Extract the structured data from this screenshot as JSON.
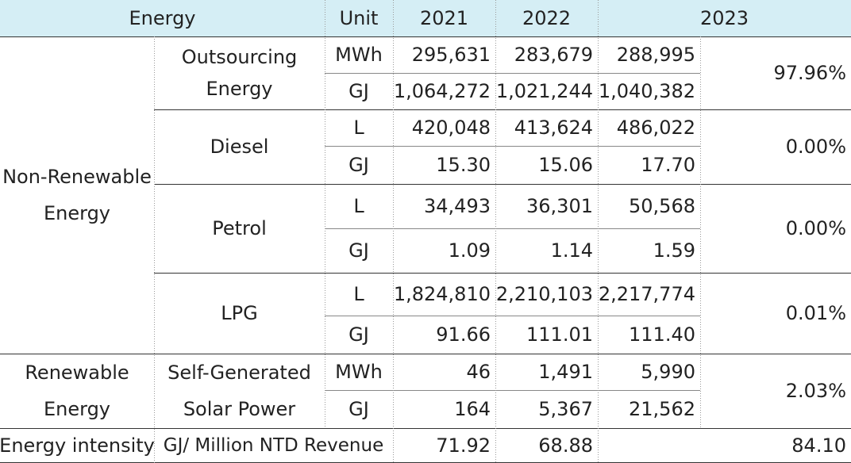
{
  "header": {
    "energy": "Energy",
    "unit": "Unit",
    "y2021": "2021",
    "y2022": "2022",
    "y2023": "2023"
  },
  "groups": {
    "non_renewable": {
      "line1": "Non-Renewable",
      "line2": "Energy"
    },
    "renewable": {
      "line1": "Renewable",
      "line2": "Energy"
    }
  },
  "rows": {
    "outsourcing": {
      "label_line1": "Outsourcing",
      "label_line2": "Energy",
      "share": "97.96%",
      "mwh": {
        "unit": "MWh",
        "v2021": "295,631",
        "v2022": "283,679",
        "v2023": "288,995"
      },
      "gj": {
        "unit": "GJ",
        "v2021": "1,064,272",
        "v2022": "1,021,244",
        "v2023": "1,040,382"
      }
    },
    "diesel": {
      "label": "Diesel",
      "share": "0.00%",
      "l": {
        "unit": "L",
        "v2021": "420,048",
        "v2022": "413,624",
        "v2023": "486,022"
      },
      "gj": {
        "unit": "GJ",
        "v2021": "15.30",
        "v2022": "15.06",
        "v2023": "17.70"
      }
    },
    "petrol": {
      "label": "Petrol",
      "share": "0.00%",
      "l": {
        "unit": "L",
        "v2021": "34,493",
        "v2022": "36,301",
        "v2023": "50,568"
      },
      "gj": {
        "unit": "GJ",
        "v2021": "1.09",
        "v2022": "1.14",
        "v2023": "1.59"
      }
    },
    "lpg": {
      "label": "LPG",
      "share": "0.01%",
      "l": {
        "unit": "L",
        "v2021": "1,824,810",
        "v2022": "2,210,103",
        "v2023": "2,217,774"
      },
      "gj": {
        "unit": "GJ",
        "v2021": "91.66",
        "v2022": "111.01",
        "v2023": "111.40"
      }
    },
    "solar": {
      "label_line1": "Self-Generated",
      "label_line2": "Solar Power",
      "share": "2.03%",
      "mwh": {
        "unit": "MWh",
        "v2021": "46",
        "v2022": "1,491",
        "v2023": "5,990"
      },
      "gj": {
        "unit": "GJ",
        "v2021": "164",
        "v2022": "5,367",
        "v2023": "21,562"
      }
    }
  },
  "intensity": {
    "label": "Energy intensity",
    "unit": "GJ/ Million NTD Revenue",
    "v2021": "71.92",
    "v2022": "68.88",
    "v2023": "84.10"
  }
}
